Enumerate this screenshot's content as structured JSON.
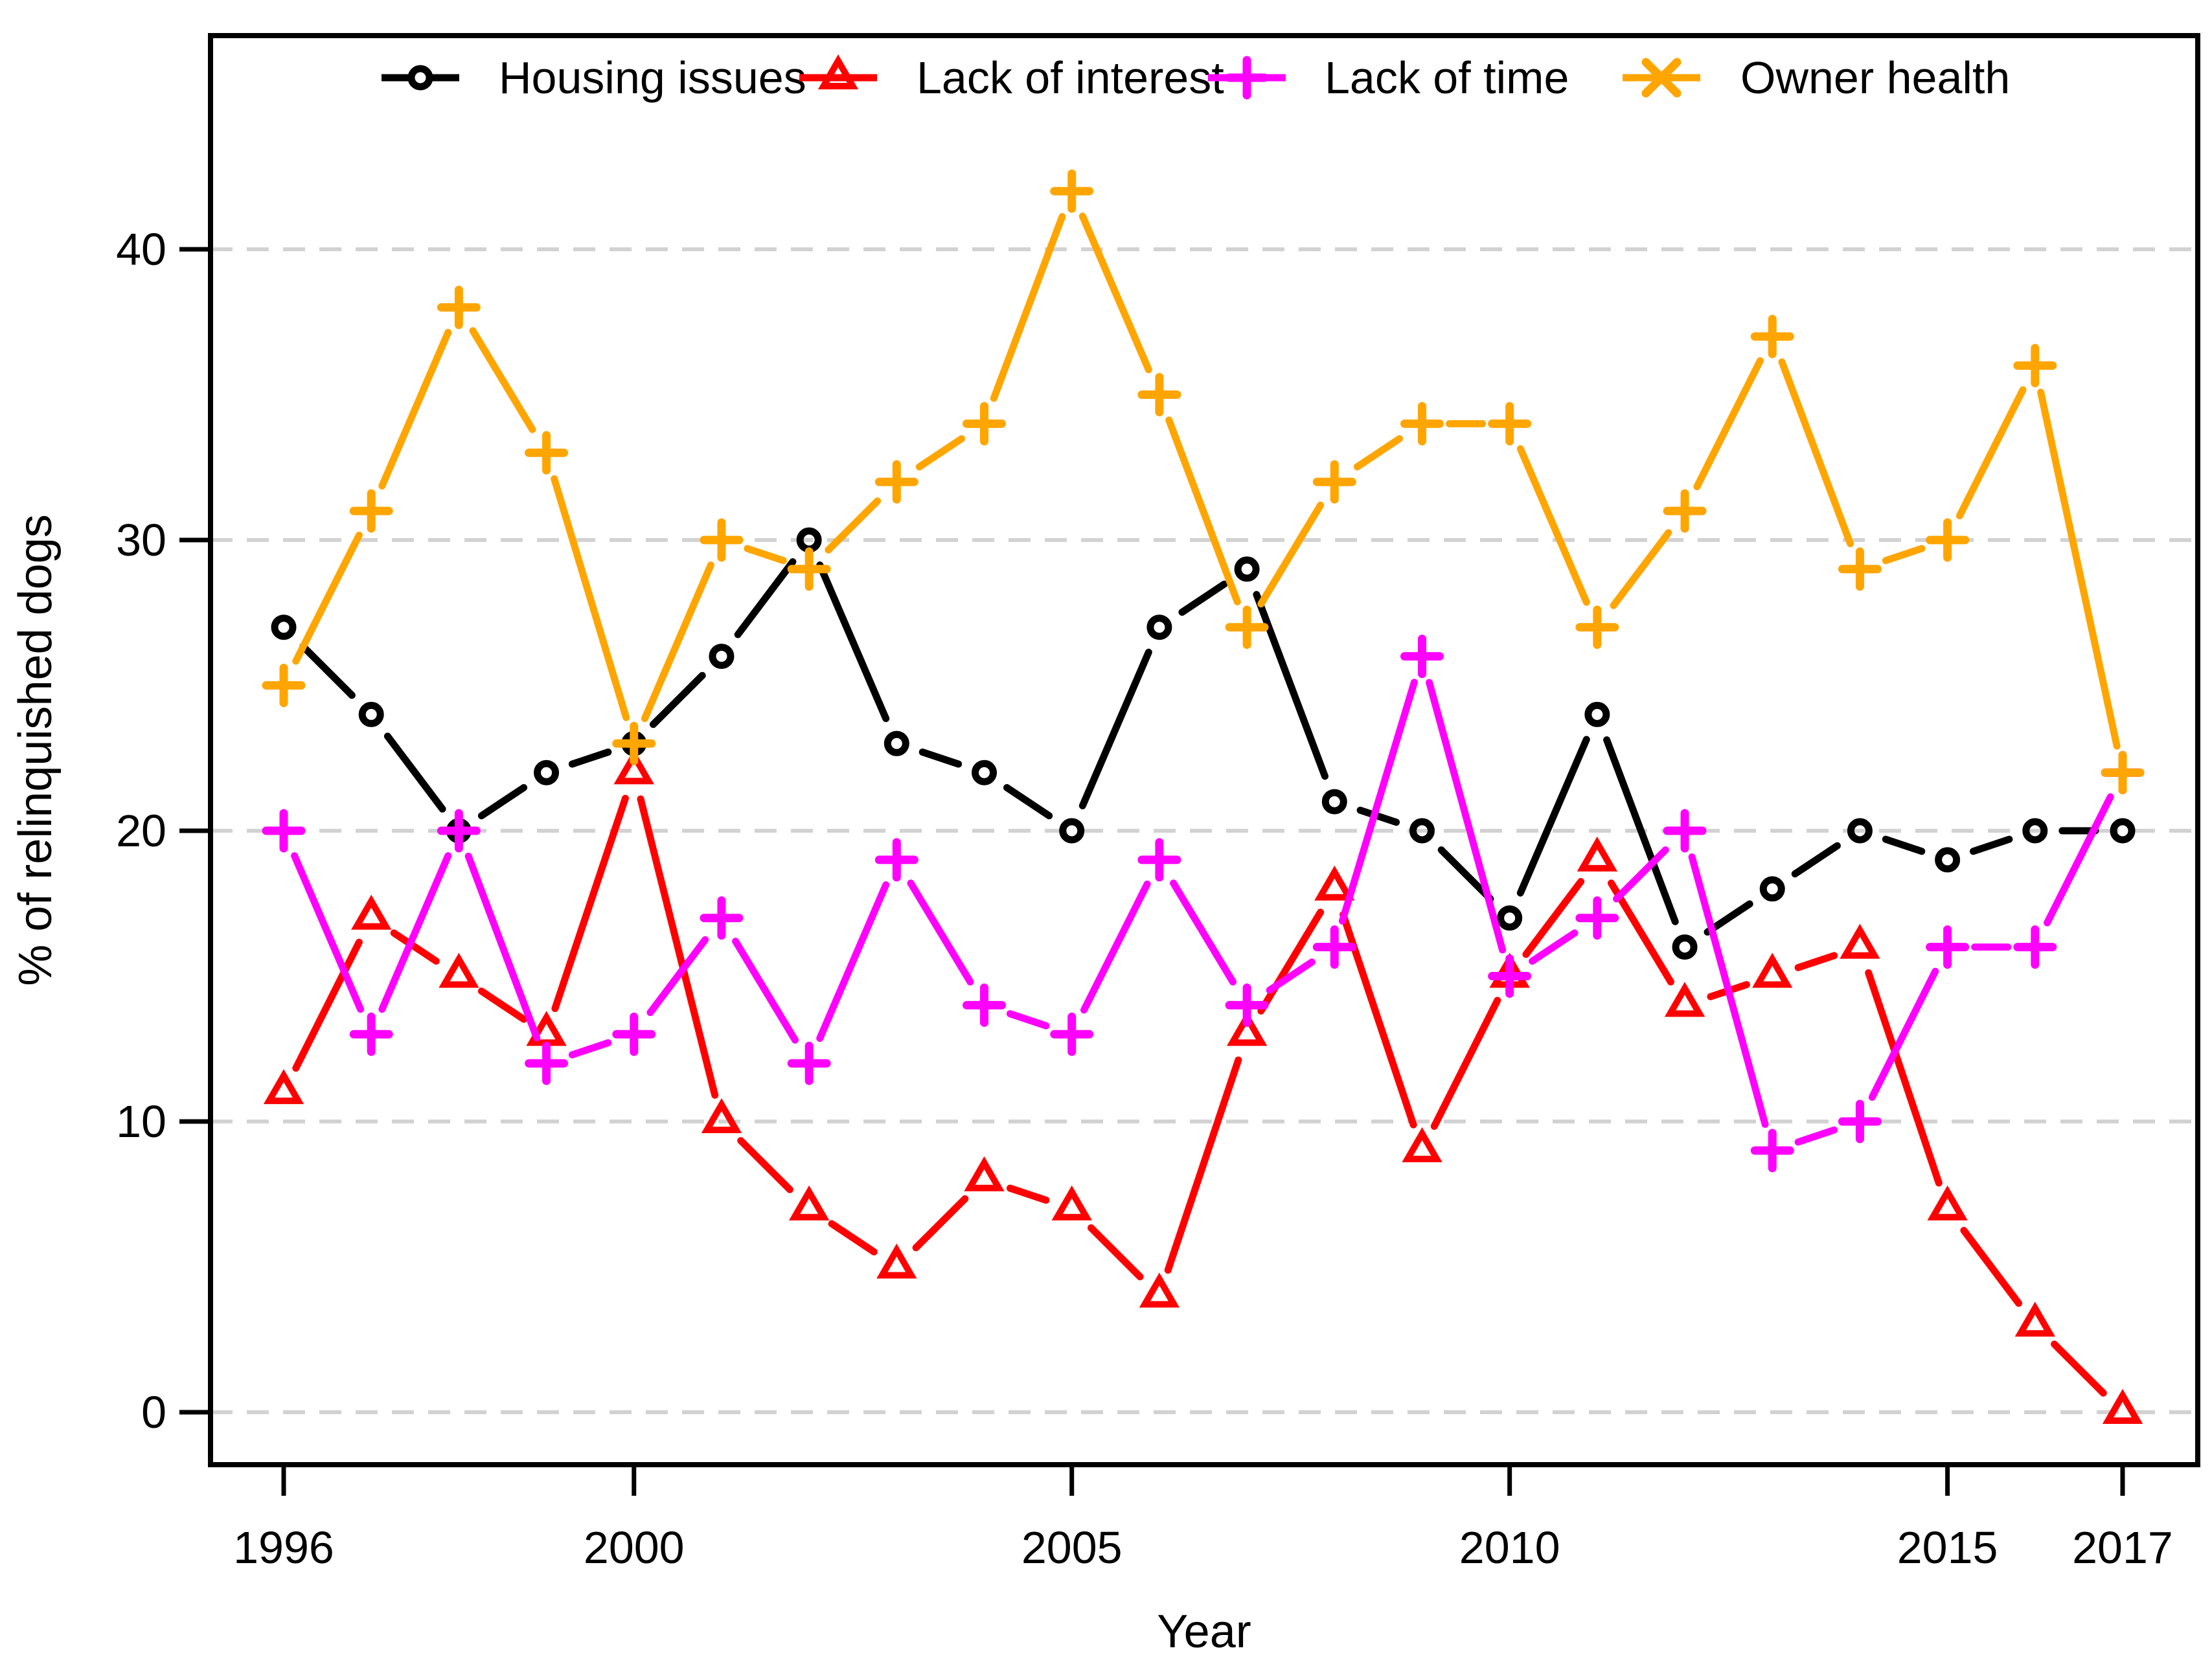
{
  "chart_data": {
    "type": "line",
    "title": "",
    "xlabel": "Year",
    "ylabel": "% of relinquished dogs",
    "x": [
      1996,
      1997,
      1998,
      1999,
      2000,
      2001,
      2002,
      2003,
      2004,
      2005,
      2006,
      2007,
      2008,
      2009,
      2010,
      2011,
      2012,
      2013,
      2014,
      2015,
      2016,
      2017
    ],
    "x_tick_labels": [
      1996,
      2000,
      2005,
      2010,
      2015,
      2017
    ],
    "y_tick_labels": [
      0,
      10,
      20,
      30,
      40
    ],
    "xlim": [
      1995.2,
      2017.86
    ],
    "ylim": [
      -1.8,
      46.8
    ],
    "grid": "horizontal-dashed",
    "grid_color": "#D2D2D2",
    "background_color": "#FFFFFF",
    "axis_color": "#000000",
    "legend_position": "top-inside-horizontal",
    "line_style": "solid-with-marker-gaps",
    "series": [
      {
        "name": "Housing issues",
        "color": "#000000",
        "marker": "circle-open",
        "legend_marker": "circle-open",
        "values": [
          27,
          24,
          20,
          22,
          23,
          26,
          30,
          23,
          22,
          20,
          27,
          29,
          21,
          20,
          17,
          24,
          16,
          18,
          20,
          19,
          20,
          20
        ]
      },
      {
        "name": "Lack of interest",
        "color": "#FF0000",
        "marker": "triangle-open",
        "legend_marker": "triangle-open",
        "values": [
          11,
          17,
          15,
          13,
          22,
          10,
          7,
          5,
          8,
          7,
          4,
          13,
          18,
          9,
          15,
          19,
          14,
          15,
          16,
          7,
          3,
          0
        ]
      },
      {
        "name": "Lack of time",
        "color": "#FF00FF",
        "marker": "plus",
        "legend_marker": "plus",
        "values": [
          20,
          13,
          20,
          12,
          13,
          17,
          12,
          19,
          14,
          13,
          19,
          14,
          16,
          26,
          15,
          17,
          20,
          9,
          10,
          16,
          16,
          22
        ]
      },
      {
        "name": "Owner health",
        "color": "#FFA500",
        "marker": "plus",
        "legend_marker": "x",
        "values": [
          25,
          31,
          38,
          33,
          23,
          30,
          29,
          32,
          34,
          42,
          35,
          27,
          32,
          34,
          34,
          27,
          31,
          37,
          29,
          30,
          36,
          22
        ]
      }
    ]
  }
}
